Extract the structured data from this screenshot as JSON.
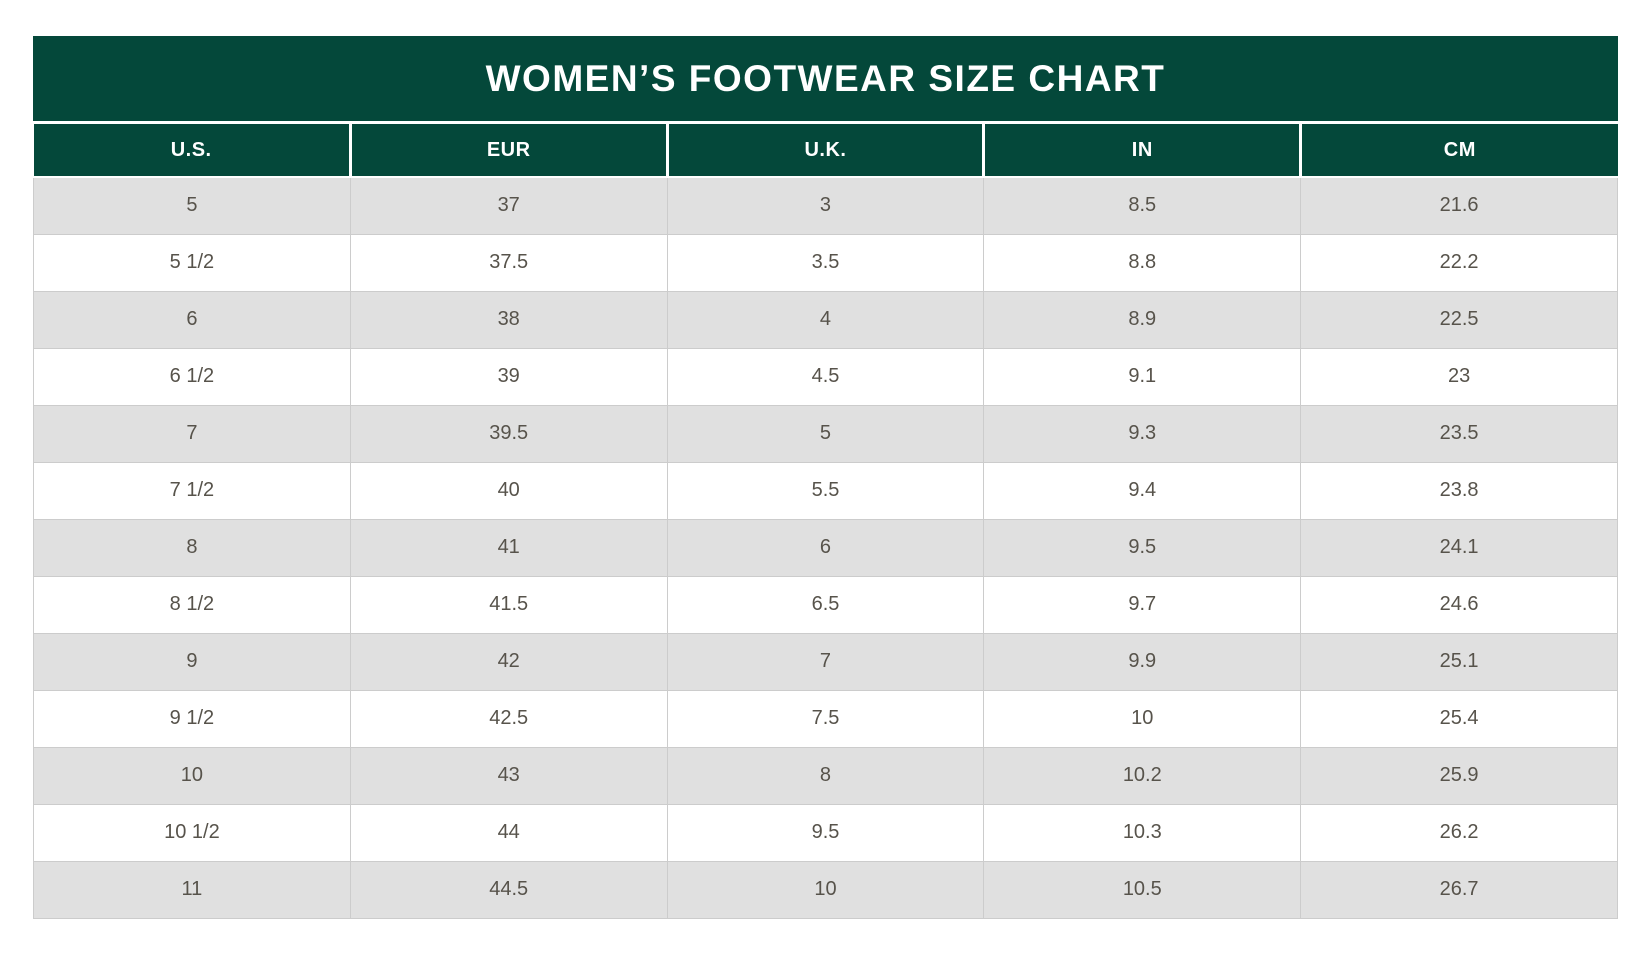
{
  "colors": {
    "header_green": "#04483A",
    "header_text": "#FFFFFF",
    "row_alt": "#E0E0E0",
    "row_white": "#FFFFFF",
    "cell_text": "#57534B",
    "grid_border": "#CCCCCC"
  },
  "chart_data": {
    "type": "table",
    "title": "WOMEN’S FOOTWEAR SIZE CHART",
    "columns": [
      "U.S.",
      "EUR",
      "U.K.",
      "IN",
      "CM"
    ],
    "rows": [
      [
        "5",
        "37",
        "3",
        "8.5",
        "21.6"
      ],
      [
        "5 1/2",
        "37.5",
        "3.5",
        "8.8",
        "22.2"
      ],
      [
        "6",
        "38",
        "4",
        "8.9",
        "22.5"
      ],
      [
        "6 1/2",
        "39",
        "4.5",
        "9.1",
        "23"
      ],
      [
        "7",
        "39.5",
        "5",
        "9.3",
        "23.5"
      ],
      [
        "7 1/2",
        "40",
        "5.5",
        "9.4",
        "23.8"
      ],
      [
        "8",
        "41",
        "6",
        "9.5",
        "24.1"
      ],
      [
        "8 1/2",
        "41.5",
        "6.5",
        "9.7",
        "24.6"
      ],
      [
        "9",
        "42",
        "7",
        "9.9",
        "25.1"
      ],
      [
        "9 1/2",
        "42.5",
        "7.5",
        "10",
        "25.4"
      ],
      [
        "10",
        "43",
        "8",
        "10.2",
        "25.9"
      ],
      [
        "10 1/2",
        "44",
        "9.5",
        "10.3",
        "26.2"
      ],
      [
        "11",
        "44.5",
        "10",
        "10.5",
        "26.7"
      ]
    ],
    "layout": {
      "row_striping": "odd-gray",
      "text_align": "center",
      "column_count": 5
    }
  }
}
